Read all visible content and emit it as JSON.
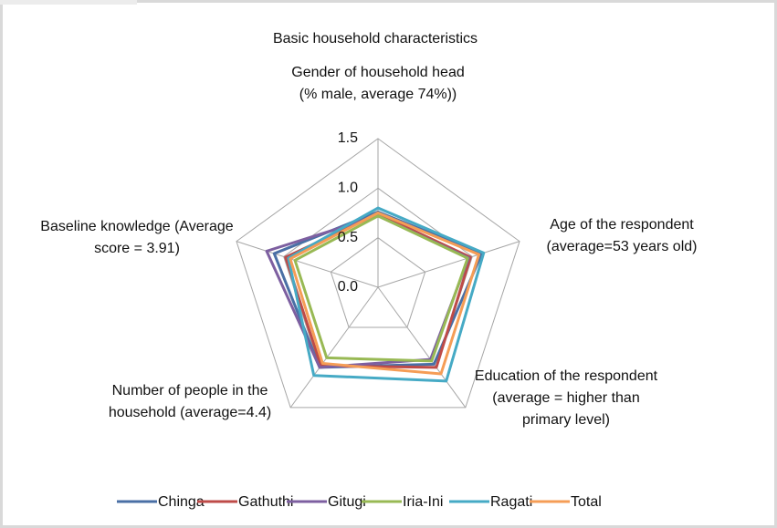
{
  "chart_data": {
    "type": "radar",
    "title": "Basic household characteristics",
    "categories": [
      "Gender of household head (% male, average 74%))",
      "Age of the respondent (average=53 years old)",
      "Education of the respondent (average = higher than primary level)",
      "Number of people in the household (average=4.4)",
      "Baseline knowledge (Average score = 3.91)"
    ],
    "rlim": [
      0,
      1.5
    ],
    "rticks": [
      {
        "value": 0,
        "label": "0.0"
      },
      {
        "value": 0.5,
        "label": "0.5"
      },
      {
        "value": 1,
        "label": "1.0"
      },
      {
        "value": 1.5,
        "label": "1.5"
      }
    ],
    "grid": true,
    "legend": "bottom",
    "series": [
      {
        "name": "Chinga",
        "color": "#4a6fa5",
        "values": [
          0.76,
          1.1,
          0.96,
          1.0,
          1.1
        ]
      },
      {
        "name": "Gathuthi",
        "color": "#be4b48",
        "values": [
          0.74,
          0.98,
          1.0,
          0.98,
          0.98
        ]
      },
      {
        "name": "Gitugi",
        "color": "#7d5fa0",
        "values": [
          0.72,
          0.96,
          0.9,
          1.0,
          1.18
        ]
      },
      {
        "name": "Iria-Ini",
        "color": "#98b954",
        "values": [
          0.72,
          0.95,
          0.92,
          0.88,
          0.88
        ]
      },
      {
        "name": "Ragati",
        "color": "#46aac5",
        "values": [
          0.8,
          1.12,
          1.17,
          1.1,
          0.95
        ]
      },
      {
        "name": "Total",
        "color": "#f59d56",
        "values": [
          0.75,
          1.07,
          1.08,
          0.95,
          0.93
        ]
      }
    ]
  }
}
